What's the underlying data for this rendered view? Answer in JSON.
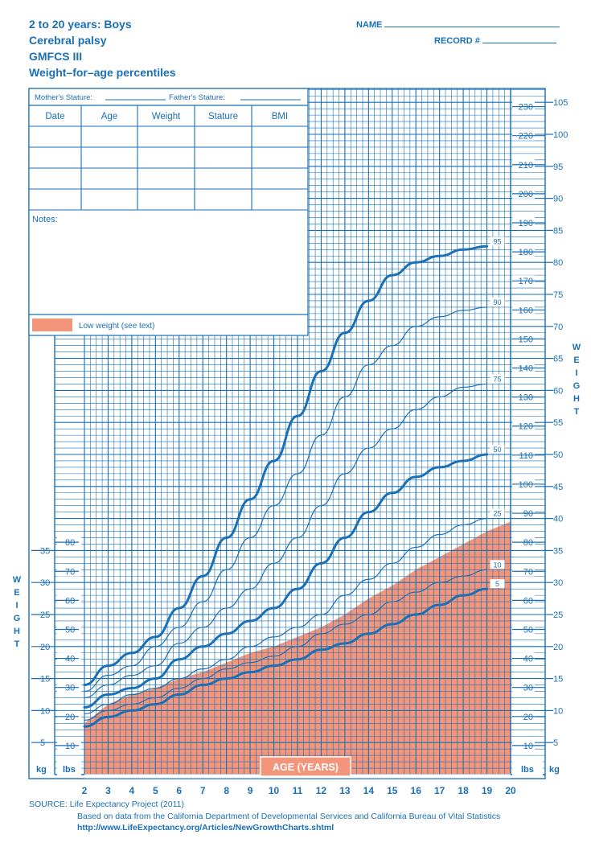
{
  "header": {
    "title_lines": [
      "2 to 20 years: Boys",
      "Cerebral palsy",
      "GMFCS III",
      "Weight–for–age percentiles"
    ],
    "name_label": "NAME",
    "record_label": "RECORD #"
  },
  "record_box": {
    "mother_stature": "Mother's Stature:",
    "father_stature": "Father's Stature:",
    "columns": [
      "Date",
      "Age",
      "Weight",
      "Stature",
      "BMI"
    ],
    "notes_label": "Notes:",
    "legend_label": "Low weight (see text)",
    "legend_color": "#f2957a"
  },
  "side_labels": {
    "left": [
      "W",
      "E",
      "I",
      "G",
      "H",
      "T"
    ],
    "right": [
      "W",
      "E",
      "I",
      "G",
      "H",
      "T"
    ]
  },
  "axis_unit_labels": {
    "kg": "kg",
    "lbs": "lbs"
  },
  "colors": {
    "primary": "#1a6fb5",
    "fill": "#f2957a"
  },
  "source": {
    "line1": "SOURCE: Life Expectancy Project (2011)",
    "line2": "Based on data from the California Department of Developmental Services and California Bureau of Vital Statistics",
    "line3": "http://www.LifeExpectancy.org/Articles/NewGrowthCharts.shtml"
  },
  "chart_data": {
    "type": "line",
    "xlabel": "AGE (YEARS)",
    "x_ticks": [
      2,
      3,
      4,
      5,
      6,
      7,
      8,
      9,
      10,
      11,
      12,
      13,
      14,
      15,
      16,
      17,
      18,
      19,
      20
    ],
    "xlim": [
      2,
      20
    ],
    "ylim_kg": [
      0,
      107
    ],
    "kg_ticks_left": [
      5,
      10,
      15,
      20,
      25,
      30,
      35
    ],
    "lbs_ticks_left": [
      10,
      20,
      30,
      40,
      50,
      60,
      70,
      80
    ],
    "kg_ticks_right": [
      5,
      10,
      15,
      20,
      25,
      30,
      35,
      40,
      45,
      50,
      55,
      60,
      65,
      70,
      75,
      80,
      85,
      90,
      95,
      100,
      105
    ],
    "lbs_ticks_right": [
      10,
      20,
      30,
      40,
      50,
      60,
      70,
      80,
      90,
      100,
      110,
      120,
      130,
      140,
      150,
      160,
      170,
      180,
      190,
      200,
      210,
      220,
      230
    ],
    "grid": true,
    "series": [
      {
        "name": "95",
        "bold": true,
        "x": [
          2,
          3,
          4,
          5,
          6,
          7,
          8,
          9,
          10,
          11,
          12,
          13,
          14,
          15,
          16,
          17,
          18,
          19
        ],
        "values": [
          14,
          17,
          19,
          21.5,
          26,
          31,
          37,
          43,
          49,
          56,
          63,
          69,
          74,
          78,
          80,
          81,
          82,
          82.5
        ]
      },
      {
        "name": "90",
        "bold": false,
        "x": [
          2,
          3,
          4,
          5,
          6,
          7,
          8,
          9,
          10,
          11,
          12,
          13,
          14,
          15,
          16,
          17,
          18,
          19
        ],
        "values": [
          13,
          15.5,
          17,
          20,
          23,
          27,
          32,
          37,
          42,
          47,
          53,
          59,
          64,
          67,
          70,
          71.5,
          72.5,
          73
        ]
      },
      {
        "name": "75",
        "bold": false,
        "x": [
          2,
          3,
          4,
          5,
          6,
          7,
          8,
          9,
          10,
          11,
          12,
          13,
          14,
          15,
          16,
          17,
          18,
          19
        ],
        "values": [
          12,
          14,
          15.5,
          17,
          20.5,
          23,
          26,
          29,
          33,
          37,
          42,
          47,
          51,
          54,
          57,
          59,
          60.5,
          61
        ]
      },
      {
        "name": "50",
        "bold": true,
        "x": [
          2,
          3,
          4,
          5,
          6,
          7,
          8,
          9,
          10,
          11,
          12,
          13,
          14,
          15,
          16,
          17,
          18,
          19
        ],
        "values": [
          10.5,
          12.5,
          13.5,
          15,
          18,
          20,
          22,
          24,
          26,
          29,
          33,
          37,
          41,
          44,
          46.5,
          48,
          49,
          50
        ]
      },
      {
        "name": "25",
        "bold": false,
        "x": [
          2,
          3,
          4,
          5,
          6,
          7,
          8,
          9,
          10,
          11,
          12,
          13,
          14,
          15,
          16,
          17,
          18,
          19
        ],
        "values": [
          9.5,
          11,
          12.5,
          13.5,
          15,
          16.5,
          18,
          20,
          21.5,
          23,
          25,
          28,
          30.5,
          33,
          35.5,
          37.5,
          39,
          40
        ]
      },
      {
        "name": "10",
        "bold": false,
        "x": [
          2,
          3,
          4,
          5,
          6,
          7,
          8,
          9,
          10,
          11,
          12,
          13,
          14,
          15,
          16,
          17,
          18,
          19
        ],
        "values": [
          8.5,
          10,
          11,
          12,
          13.5,
          15,
          16.5,
          17.5,
          18.5,
          20,
          22,
          23.5,
          25,
          27,
          28.5,
          30,
          31,
          32
        ]
      },
      {
        "name": "5",
        "bold": true,
        "x": [
          2,
          3,
          4,
          5,
          6,
          7,
          8,
          9,
          10,
          11,
          12,
          13,
          14,
          15,
          16,
          17,
          18,
          19
        ],
        "values": [
          7.5,
          9,
          10,
          11,
          12.5,
          14,
          15,
          16,
          17,
          18,
          19.5,
          20.5,
          22,
          23.5,
          25,
          26.5,
          28,
          29
        ]
      }
    ],
    "low_weight_band": {
      "x": [
        2,
        3,
        4,
        5,
        6,
        7,
        8,
        9,
        10,
        11,
        12,
        13,
        14,
        15,
        16,
        17,
        18,
        19,
        20
      ],
      "values": [
        8,
        11,
        12.5,
        13.5,
        15,
        16,
        17.5,
        19,
        20,
        21.5,
        23,
        25,
        27.5,
        29.5,
        32,
        34,
        36,
        38,
        39.5
      ]
    }
  }
}
